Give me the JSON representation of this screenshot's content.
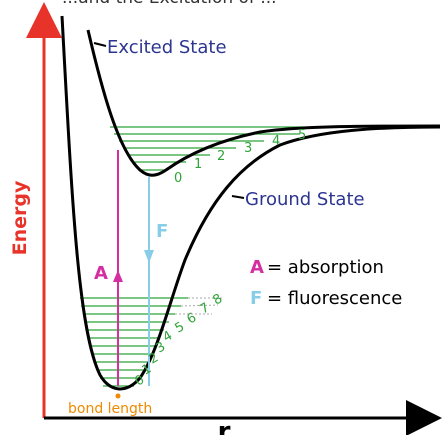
{
  "title_fragment": "...and the Excitation of ...",
  "colors": {
    "axis": "#e8332a",
    "ground_curve": "#000000",
    "levels": "#2fa339",
    "level_numbers": "#2fa339",
    "absorption": "#d42ea0",
    "fluorescence": "#87cde8",
    "state_label": "#2c3590",
    "bond_length": "#f08a00"
  },
  "axes": {
    "y_label": "Energy",
    "x_label": "r"
  },
  "states": {
    "excited_label": "Excited State",
    "ground_label": "Ground State"
  },
  "transitions": {
    "absorption_letter": "A",
    "fluorescence_letter": "F"
  },
  "legend": {
    "absorption_letter": "A",
    "absorption_text": "= absorption",
    "fluorescence_letter": "F",
    "fluorescence_text": "= fluorescence"
  },
  "ground_levels": [
    "0",
    "1",
    "2",
    "3",
    "4",
    "5",
    "6",
    "7",
    "8"
  ],
  "excited_levels": [
    "0",
    "1",
    "2",
    "3",
    "4",
    "5"
  ],
  "annotations": {
    "bond_length": "bond length"
  }
}
